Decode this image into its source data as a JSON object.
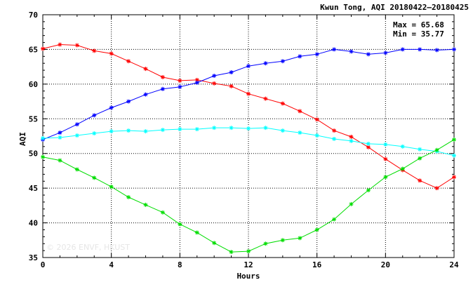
{
  "chart_data": {
    "type": "line",
    "title": "Kwun Tong, AQI 20180422–20180425",
    "xlabel": "Hours",
    "ylabel": "AQI",
    "xlim": [
      0,
      24
    ],
    "ylim": [
      35,
      70
    ],
    "xticks": [
      0,
      4,
      8,
      12,
      16,
      20,
      24
    ],
    "yticks": [
      35,
      40,
      45,
      50,
      55,
      60,
      65,
      70
    ],
    "grid": true,
    "x": [
      0,
      1,
      2,
      3,
      4,
      5,
      6,
      7,
      8,
      9,
      10,
      11,
      12,
      13,
      14,
      15,
      16,
      17,
      18,
      19,
      20,
      21,
      22,
      23,
      24
    ],
    "series": [
      {
        "color": "#ff0000",
        "values": [
          65.1,
          65.7,
          65.6,
          64.8,
          64.4,
          63.3,
          62.2,
          61.0,
          60.5,
          60.6,
          60.1,
          59.7,
          58.6,
          57.9,
          57.2,
          56.1,
          54.9,
          53.3,
          52.4,
          50.9,
          49.2,
          47.6,
          46.1,
          45.0,
          46.6
        ]
      },
      {
        "color": "#0000ff",
        "values": [
          52.0,
          53.0,
          54.2,
          55.5,
          56.6,
          57.5,
          58.5,
          59.3,
          59.6,
          60.2,
          61.2,
          61.7,
          62.6,
          63.0,
          63.3,
          64.0,
          64.3,
          65.0,
          64.7,
          64.3,
          64.5,
          65.0,
          65.0,
          64.9,
          65.0
        ]
      },
      {
        "color": "#00ffff",
        "values": [
          52.2,
          52.3,
          52.6,
          52.9,
          53.2,
          53.3,
          53.2,
          53.4,
          53.5,
          53.5,
          53.7,
          53.7,
          53.6,
          53.7,
          53.3,
          53.0,
          52.6,
          52.1,
          51.8,
          51.4,
          51.3,
          51.0,
          50.6,
          50.3,
          49.7
        ]
      },
      {
        "color": "#00dd00",
        "values": [
          49.5,
          49.0,
          47.7,
          46.5,
          45.2,
          43.7,
          42.6,
          41.5,
          39.8,
          38.6,
          37.1,
          35.8,
          35.9,
          37.0,
          37.5,
          37.8,
          39.0,
          40.5,
          42.7,
          44.7,
          46.6,
          47.8,
          49.3,
          50.5,
          52.0
        ]
      }
    ],
    "annotations": {
      "max": "Max = 65.68",
      "min": "Min = 35.77"
    },
    "watermark": "© 2026 ENVF, HKUST"
  }
}
